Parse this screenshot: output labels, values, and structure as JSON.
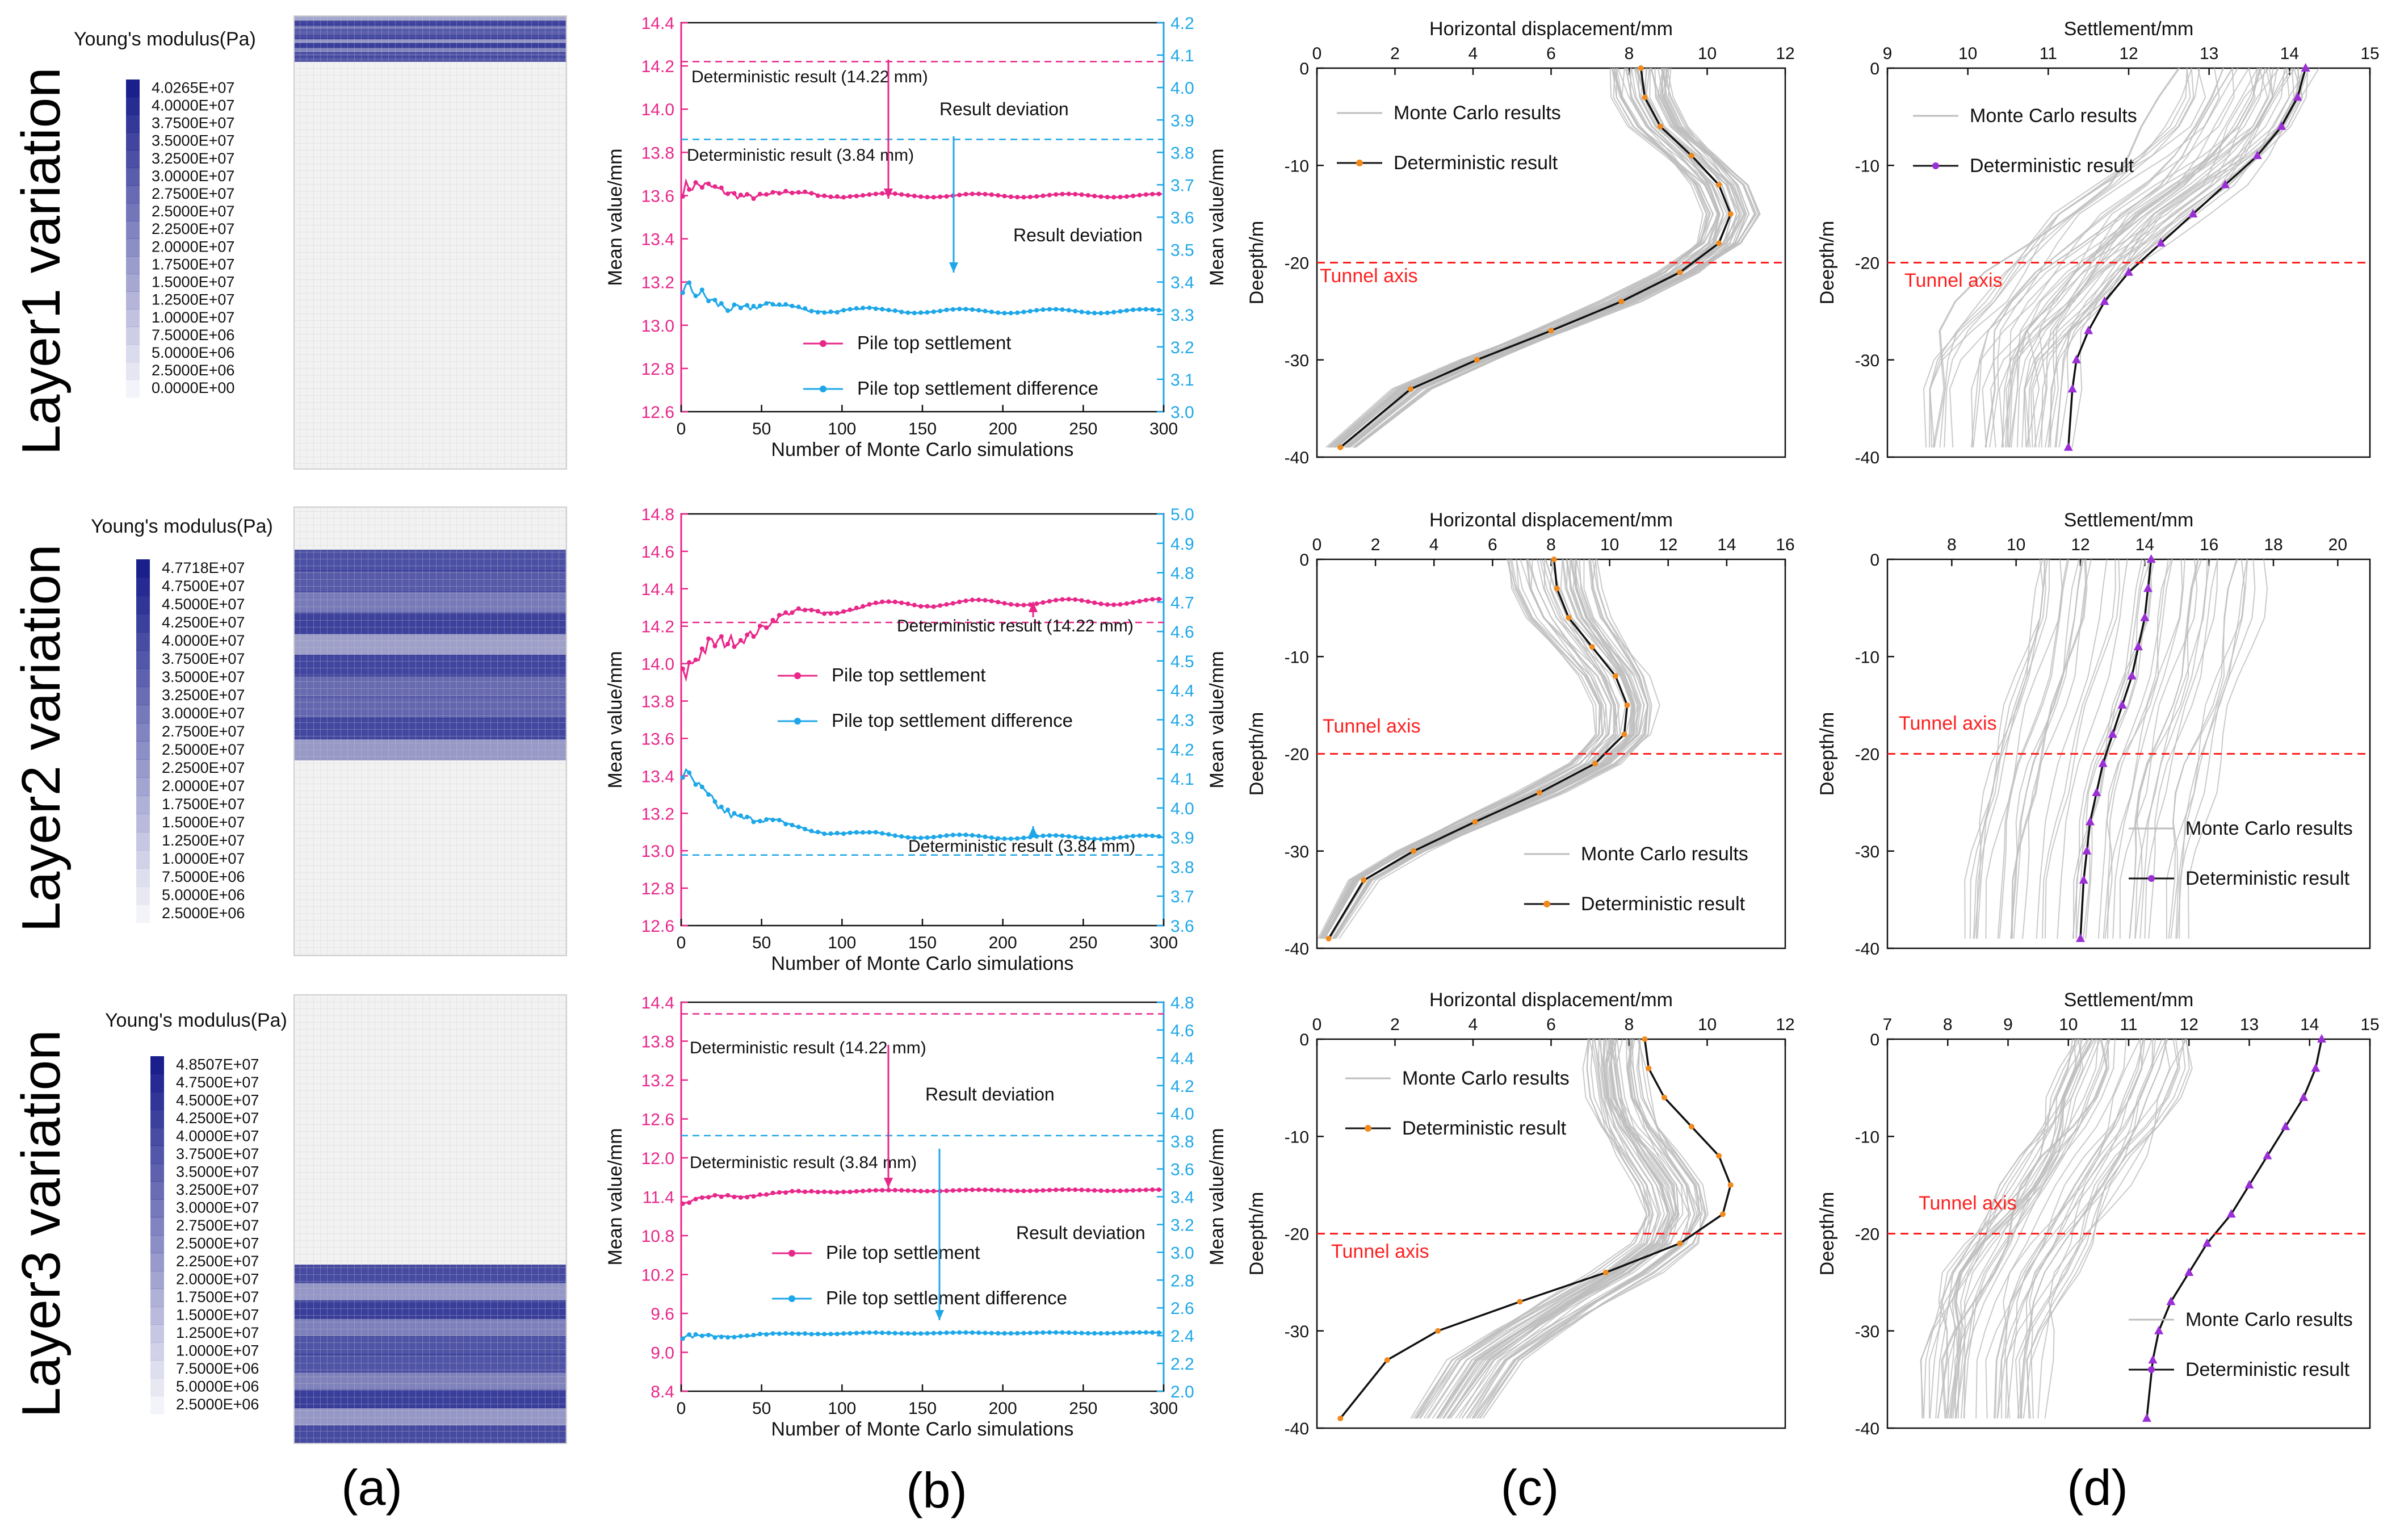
{
  "row_labels": [
    "Layer1 variation",
    "Layer2 variation",
    "Layer3 variation"
  ],
  "panel_labels": [
    "(a)",
    "(b)",
    "(c)",
    "(d)"
  ],
  "colors": {
    "pink": "#e8278a",
    "blue": "#1ea7e8",
    "orange": "#f08a1c",
    "purple": "#9b2fd6",
    "mc_grey": "#bdbdbd",
    "red": "#ff2020",
    "mesh": "#e8e8e8",
    "modulus_dark": "#1a1f8c"
  },
  "legend_scales": [
    {
      "title": "Young's modulus(Pa)",
      "labels": [
        "4.0265E+07",
        "4.0000E+07",
        "3.7500E+07",
        "3.5000E+07",
        "3.2500E+07",
        "3.0000E+07",
        "2.7500E+07",
        "2.5000E+07",
        "2.2500E+07",
        "2.0000E+07",
        "1.7500E+07",
        "1.5000E+07",
        "1.2500E+07",
        "1.0000E+07",
        "7.5000E+06",
        "5.0000E+06",
        "2.5000E+06",
        "0.0000E+00"
      ]
    },
    {
      "title": "Young's modulus(Pa)",
      "labels": [
        "4.7718E+07",
        "4.7500E+07",
        "4.5000E+07",
        "4.2500E+07",
        "4.0000E+07",
        "3.7500E+07",
        "3.5000E+07",
        "3.2500E+07",
        "3.0000E+07",
        "2.7500E+07",
        "2.5000E+07",
        "2.2500E+07",
        "2.0000E+07",
        "1.7500E+07",
        "1.5000E+07",
        "1.2500E+07",
        "1.0000E+07",
        "7.5000E+06",
        "5.0000E+06",
        "2.5000E+06"
      ]
    },
    {
      "title": "Young's modulus(Pa)",
      "labels": [
        "4.8507E+07",
        "4.7500E+07",
        "4.5000E+07",
        "4.2500E+07",
        "4.0000E+07",
        "3.7500E+07",
        "3.5000E+07",
        "3.2500E+07",
        "3.0000E+07",
        "2.7500E+07",
        "2.5000E+07",
        "2.2500E+07",
        "2.0000E+07",
        "1.7500E+07",
        "1.5000E+07",
        "1.2500E+07",
        "1.0000E+07",
        "7.5000E+06",
        "5.0000E+06",
        "2.5000E+06"
      ]
    }
  ],
  "chart_data": [
    {
      "id": "b1",
      "type": "line",
      "xlabel": "Number of Monte Carlo simulations",
      "ylabel": "Mean value/mm",
      "y2label": "Mean value/mm",
      "xlim": [
        0,
        300
      ],
      "xticks": [
        0,
        50,
        100,
        150,
        200,
        250,
        300
      ],
      "ylim": [
        12.6,
        14.4
      ],
      "yticks": [
        12.6,
        12.8,
        13.0,
        13.2,
        13.4,
        13.6,
        13.8,
        14.0,
        14.2,
        14.4
      ],
      "y2lim": [
        3.0,
        4.2
      ],
      "y2ticks": [
        3.0,
        3.1,
        3.2,
        3.3,
        3.4,
        3.5,
        3.6,
        3.7,
        3.8,
        3.9,
        4.0,
        4.1,
        4.2
      ],
      "series": [
        {
          "name": "Pile top settlement",
          "axis": "left",
          "color": "pink",
          "final": 13.6,
          "start": 13.63,
          "wiggle": 0.025
        },
        {
          "name": "Pile top settlement difference",
          "axis": "right",
          "color": "blue",
          "final": 3.31,
          "start": 3.36,
          "wiggle": 0.02
        }
      ],
      "ref_lines": [
        {
          "axis": "left",
          "value": 14.22,
          "color": "pink",
          "label": "Deterministic result (14.22 mm)"
        },
        {
          "axis": "right",
          "value": 3.84,
          "color": "blue",
          "label": "Deterministic result (3.84 mm)"
        }
      ],
      "annotations": [
        "Result deviation",
        "Result deviation"
      ],
      "legend_position": "bottom-right"
    },
    {
      "id": "b2",
      "type": "line",
      "xlabel": "Number of Monte Carlo simulations",
      "ylabel": "Mean value/mm",
      "y2label": "Mean value/mm",
      "xlim": [
        0,
        300
      ],
      "xticks": [
        0,
        50,
        100,
        150,
        200,
        250,
        300
      ],
      "ylim": [
        12.6,
        14.8
      ],
      "yticks": [
        12.6,
        12.8,
        13.0,
        13.2,
        13.4,
        13.6,
        13.8,
        14.0,
        14.2,
        14.4,
        14.6,
        14.8
      ],
      "y2lim": [
        3.6,
        5.0
      ],
      "y2ticks": [
        3.6,
        3.7,
        3.8,
        3.9,
        4.0,
        4.1,
        4.2,
        4.3,
        4.4,
        4.5,
        4.6,
        4.7,
        4.8,
        4.9,
        5.0
      ],
      "series": [
        {
          "name": "Pile top settlement",
          "axis": "left",
          "color": "pink",
          "final": 14.33,
          "start": 13.9,
          "wiggle": 0.05
        },
        {
          "name": "Pile top settlement difference",
          "axis": "right",
          "color": "blue",
          "final": 3.9,
          "start": 4.1,
          "wiggle": 0.02
        }
      ],
      "ref_lines": [
        {
          "axis": "left",
          "value": 14.22,
          "color": "pink",
          "label": "Deterministic result (14.22 mm)"
        },
        {
          "axis": "right",
          "value": 3.84,
          "color": "blue",
          "label": "Deterministic result (3.84 mm)"
        }
      ],
      "annotations": [],
      "legend_position": "center"
    },
    {
      "id": "b3",
      "type": "line",
      "xlabel": "Number of Monte Carlo simulations",
      "ylabel": "Mean value/mm",
      "y2label": "Mean value/mm",
      "xlim": [
        0,
        300
      ],
      "xticks": [
        0,
        50,
        100,
        150,
        200,
        250,
        300
      ],
      "ylim": [
        8.4,
        14.4
      ],
      "yticks": [
        8.4,
        9.0,
        9.6,
        10.2,
        10.8,
        11.4,
        12.0,
        12.6,
        13.2,
        13.8,
        14.4
      ],
      "y2lim": [
        2.0,
        4.8
      ],
      "y2ticks": [
        2.0,
        2.2,
        2.4,
        2.6,
        2.8,
        3.0,
        3.2,
        3.4,
        3.6,
        3.8,
        4.0,
        4.2,
        4.4,
        4.6,
        4.8
      ],
      "series": [
        {
          "name": "Pile top settlement",
          "axis": "left",
          "color": "pink",
          "final": 11.5,
          "start": 11.3,
          "wiggle": 0.03
        },
        {
          "name": "Pile top settlement difference",
          "axis": "right",
          "color": "blue",
          "final": 2.42,
          "start": 2.38,
          "wiggle": 0.01
        }
      ],
      "ref_lines": [
        {
          "axis": "left",
          "value": 14.22,
          "color": "pink",
          "label": "Deterministic result (14.22 mm)"
        },
        {
          "axis": "right",
          "value": 3.84,
          "color": "blue",
          "label": "Deterministic result (3.84 mm)"
        }
      ],
      "annotations": [
        "Result deviation",
        "Result deviation"
      ],
      "legend_position": "bottom-left"
    },
    {
      "id": "c1",
      "type": "line",
      "xlabel": "Horizontal displacement/mm",
      "ylabel": "Deepth/m",
      "xlim": [
        0,
        12
      ],
      "xticks": [
        0,
        2,
        4,
        6,
        8,
        10,
        12
      ],
      "ylim": [
        -40,
        0
      ],
      "yticks": [
        0,
        -10,
        -20,
        -30,
        -40
      ],
      "tunnel_axis": {
        "label": "Tunnel axis",
        "depth": -20
      },
      "series": [
        {
          "name": "Monte Carlo results",
          "color": "mc_grey"
        },
        {
          "name": "Deterministic result",
          "color": "orange",
          "x": [
            8.3,
            8.4,
            8.8,
            9.6,
            10.3,
            10.6,
            10.3,
            9.3,
            7.8,
            6.0,
            4.1,
            2.4,
            0.6
          ],
          "y": [
            0,
            -3,
            -6,
            -9,
            -12,
            -15,
            -18,
            -21,
            -24,
            -27,
            -30,
            -33,
            -39
          ]
        }
      ],
      "mc_spread": [
        0.8,
        0.3
      ],
      "legend_position": "top-left"
    },
    {
      "id": "c2",
      "type": "line",
      "xlabel": "Horizontal displacement/mm",
      "ylabel": "Deepth/m",
      "xlim": [
        0,
        16
      ],
      "xticks": [
        0,
        2,
        4,
        6,
        8,
        10,
        12,
        14,
        16
      ],
      "ylim": [
        -40,
        0
      ],
      "yticks": [
        0,
        -10,
        -20,
        -30,
        -40
      ],
      "tunnel_axis": {
        "label": "Tunnel axis",
        "depth": -20
      },
      "series": [
        {
          "name": "Monte Carlo results",
          "color": "mc_grey"
        },
        {
          "name": "Deterministic result",
          "color": "orange",
          "x": [
            8.1,
            8.2,
            8.6,
            9.4,
            10.2,
            10.6,
            10.5,
            9.5,
            7.6,
            5.4,
            3.3,
            1.6,
            0.4
          ],
          "y": [
            0,
            -3,
            -6,
            -9,
            -12,
            -15,
            -18,
            -21,
            -24,
            -27,
            -30,
            -33,
            -39
          ]
        }
      ],
      "mc_spread": [
        1.6,
        0.3
      ],
      "legend_position": "bottom-right"
    },
    {
      "id": "c3",
      "type": "line",
      "xlabel": "Horizontal displacement/mm",
      "ylabel": "Deepth/m",
      "xlim": [
        0,
        12
      ],
      "xticks": [
        0,
        2,
        4,
        6,
        8,
        10,
        12
      ],
      "ylim": [
        -40,
        0
      ],
      "yticks": [
        0,
        -10,
        -20,
        -30,
        -40
      ],
      "tunnel_axis": {
        "label": "Tunnel axis",
        "depth": -20
      },
      "series": [
        {
          "name": "Monte Carlo results",
          "color": "mc_grey",
          "x": [
            7.6,
            7.6,
            7.7,
            8.0,
            8.5,
            9.0,
            9.2,
            8.9,
            7.9,
            6.6,
            5.4,
            4.3,
            3.3
          ],
          "y": [
            0,
            -3,
            -6,
            -9,
            -12,
            -15,
            -18,
            -21,
            -24,
            -27,
            -30,
            -33,
            -39
          ]
        },
        {
          "name": "Deterministic result",
          "color": "orange",
          "x": [
            8.4,
            8.5,
            8.9,
            9.6,
            10.3,
            10.6,
            10.4,
            9.3,
            7.4,
            5.2,
            3.1,
            1.8,
            0.6
          ],
          "y": [
            0,
            -3,
            -6,
            -9,
            -12,
            -15,
            -18,
            -21,
            -24,
            -27,
            -30,
            -33,
            -39
          ]
        }
      ],
      "mc_spread": [
        0.7,
        0.9
      ],
      "legend_position": "top-left"
    },
    {
      "id": "d1",
      "type": "line",
      "xlabel": "Settlement/mm",
      "ylabel": "Deepth/m",
      "xlim": [
        9,
        15
      ],
      "xticks": [
        9,
        10,
        11,
        12,
        13,
        14,
        15
      ],
      "ylim": [
        -40,
        0
      ],
      "yticks": [
        0,
        -10,
        -20,
        -30,
        -40
      ],
      "tunnel_axis": {
        "label": "Tunnel axis",
        "depth": -20
      },
      "series": [
        {
          "name": "Monte Carlo results",
          "color": "mc_grey",
          "x": [
            13.5,
            13.4,
            13.2,
            12.9,
            12.5,
            12.0,
            11.6,
            11.2,
            10.9,
            10.6,
            10.45,
            10.4,
            10.35
          ],
          "y": [
            0,
            -3,
            -6,
            -9,
            -12,
            -15,
            -18,
            -21,
            -24,
            -27,
            -30,
            -33,
            -39
          ]
        },
        {
          "name": "Deterministic result",
          "color": "purple",
          "x": [
            14.2,
            14.1,
            13.9,
            13.6,
            13.2,
            12.8,
            12.4,
            12.0,
            11.7,
            11.5,
            11.35,
            11.3,
            11.25
          ],
          "y": [
            0,
            -3,
            -6,
            -9,
            -12,
            -15,
            -18,
            -21,
            -24,
            -27,
            -30,
            -33,
            -39
          ]
        }
      ],
      "mc_spread": [
        0.9,
        0.9
      ],
      "legend_position": "top-left"
    },
    {
      "id": "d2",
      "type": "line",
      "xlabel": "Settlement/mm",
      "ylabel": "Deepth/m",
      "xlim": [
        6,
        21
      ],
      "xticks": [
        8,
        10,
        12,
        14,
        16,
        18,
        20
      ],
      "ylim": [
        -40,
        0
      ],
      "yticks": [
        0,
        -10,
        -20,
        -30,
        -40
      ],
      "tunnel_axis": {
        "label": "Tunnel axis",
        "depth": -20
      },
      "series": [
        {
          "name": "Monte Carlo results",
          "color": "mc_grey"
        },
        {
          "name": "Deterministic result",
          "color": "purple",
          "x": [
            14.2,
            14.1,
            14.0,
            13.8,
            13.6,
            13.3,
            13.0,
            12.7,
            12.5,
            12.3,
            12.2,
            12.1,
            12.0
          ],
          "y": [
            0,
            -3,
            -6,
            -9,
            -12,
            -15,
            -18,
            -21,
            -24,
            -27,
            -30,
            -33,
            -39
          ]
        }
      ],
      "mc_spread": [
        3.5,
        3.5
      ],
      "legend_position": "bottom-right"
    },
    {
      "id": "d3",
      "type": "line",
      "xlabel": "Settlement/mm",
      "ylabel": "Deepth/m",
      "xlim": [
        7,
        15
      ],
      "xticks": [
        7,
        8,
        9,
        10,
        11,
        12,
        13,
        14,
        15
      ],
      "ylim": [
        -40,
        0
      ],
      "yticks": [
        0,
        -10,
        -20,
        -30,
        -40
      ],
      "tunnel_axis": {
        "label": "Tunnel axis",
        "depth": -20
      },
      "series": [
        {
          "name": "Monte Carlo results",
          "color": "mc_grey",
          "x": [
            11.0,
            10.9,
            10.7,
            10.5,
            10.2,
            9.9,
            9.6,
            9.3,
            9.0,
            8.8,
            8.7,
            8.6,
            8.55
          ],
          "y": [
            0,
            -3,
            -6,
            -9,
            -12,
            -15,
            -18,
            -21,
            -24,
            -27,
            -30,
            -33,
            -39
          ]
        },
        {
          "name": "Deterministic result",
          "color": "purple",
          "x": [
            14.2,
            14.1,
            13.9,
            13.6,
            13.3,
            13.0,
            12.7,
            12.3,
            12.0,
            11.7,
            11.5,
            11.4,
            11.3
          ],
          "y": [
            0,
            -3,
            -6,
            -9,
            -12,
            -15,
            -18,
            -21,
            -24,
            -27,
            -30,
            -33,
            -39
          ]
        }
      ],
      "mc_spread": [
        1.0,
        1.0
      ],
      "legend_position": "bottom-right"
    }
  ]
}
